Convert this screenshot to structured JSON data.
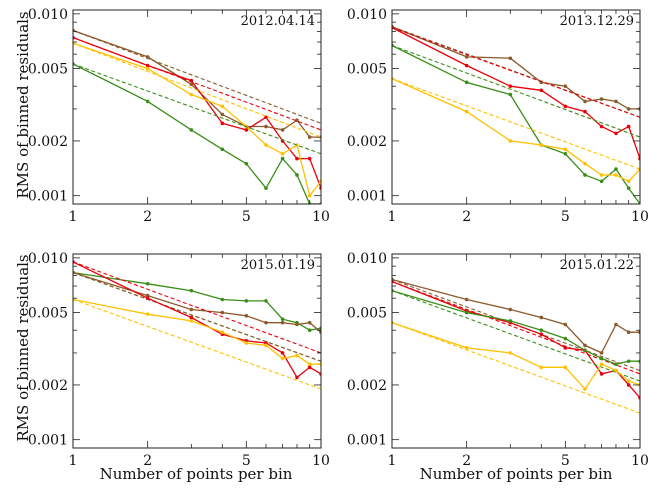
{
  "figure": {
    "ylabel": "RMS of binned residuals",
    "xlabel": "Number of points per bin"
  },
  "chart_data": [
    {
      "type": "line",
      "title": "2012.04.14",
      "xlabel": "Number of points per bin",
      "ylabel": "RMS of binned residuals",
      "xscale": "log",
      "yscale": "log",
      "xlim": [
        1,
        10
      ],
      "ylim": [
        0.0009,
        0.0105
      ],
      "xticks": [
        {
          "v": 1,
          "label": "1"
        },
        {
          "v": 2,
          "label": "2"
        },
        {
          "v": 5,
          "label": "5"
        },
        {
          "v": 10,
          "label": "10"
        }
      ],
      "yticks": [
        {
          "v": 0.001,
          "label": "0.001"
        },
        {
          "v": 0.002,
          "label": "0.002"
        },
        {
          "v": 0.005,
          "label": "0.005"
        },
        {
          "v": 0.01,
          "label": "0.010"
        }
      ],
      "x": [
        1,
        2,
        3,
        4,
        5,
        6,
        7,
        8,
        9,
        10
      ],
      "series": [
        {
          "color": "#8B5A2B",
          "values": [
            0.0081,
            0.0058,
            0.0041,
            0.0028,
            0.0024,
            0.0024,
            0.0023,
            0.0026,
            0.0021,
            0.0021
          ],
          "ref": [
            0.0081,
            0.0025
          ]
        },
        {
          "color": "#E8000B",
          "values": [
            0.0074,
            0.0052,
            0.0043,
            0.0025,
            0.0023,
            0.0027,
            0.002,
            0.0016,
            0.0016,
            0.0011
          ],
          "ref": [
            0.0074,
            0.0023
          ]
        },
        {
          "color": "#FFC000",
          "values": [
            0.0069,
            0.005,
            0.0036,
            0.0031,
            0.0024,
            0.0019,
            0.0017,
            0.0019,
            0.001,
            0.0012
          ],
          "ref": [
            0.0069,
            0.0021
          ]
        },
        {
          "color": "#3A8E17",
          "values": [
            0.0053,
            0.0033,
            0.0023,
            0.0018,
            0.0015,
            0.0011,
            0.0016,
            0.0013,
            0.0009,
            0.0009
          ],
          "ref": [
            0.0053,
            0.0017
          ]
        }
      ]
    },
    {
      "type": "line",
      "title": "2013.12.29",
      "xlabel": "Number of points per bin",
      "ylabel": "RMS of binned residuals",
      "xscale": "log",
      "yscale": "log",
      "xlim": [
        1,
        10
      ],
      "ylim": [
        0.0009,
        0.0105
      ],
      "xticks": [
        {
          "v": 1,
          "label": "1"
        },
        {
          "v": 2,
          "label": "2"
        },
        {
          "v": 5,
          "label": "5"
        },
        {
          "v": 10,
          "label": "10"
        }
      ],
      "yticks": [
        {
          "v": 0.001,
          "label": "0.001"
        },
        {
          "v": 0.002,
          "label": "0.002"
        },
        {
          "v": 0.005,
          "label": "0.005"
        },
        {
          "v": 0.01,
          "label": "0.010"
        }
      ],
      "x": [
        1,
        2,
        3,
        4,
        5,
        6,
        7,
        8,
        9,
        10
      ],
      "series": [
        {
          "color": "#8B5A2B",
          "values": [
            0.0085,
            0.0058,
            0.0057,
            0.0042,
            0.004,
            0.0033,
            0.0034,
            0.0033,
            0.003,
            0.003
          ],
          "ref": [
            0.0085,
            0.0027
          ]
        },
        {
          "color": "#E8000B",
          "values": [
            0.0084,
            0.0052,
            0.004,
            0.0038,
            0.0031,
            0.0029,
            0.0024,
            0.0022,
            0.0024,
            0.0016
          ],
          "ref": [
            0.0084,
            0.0027
          ]
        },
        {
          "color": "#3A8E17",
          "values": [
            0.0067,
            0.0042,
            0.0036,
            0.0019,
            0.0017,
            0.0013,
            0.0012,
            0.0014,
            0.0011,
            0.0009
          ],
          "ref": [
            0.0067,
            0.0021
          ]
        },
        {
          "color": "#FFC000",
          "values": [
            0.0044,
            0.0029,
            0.002,
            0.0019,
            0.0018,
            0.0015,
            0.0013,
            0.0013,
            0.0012,
            0.0014
          ],
          "ref": [
            0.0044,
            0.0014
          ]
        }
      ]
    },
    {
      "type": "line",
      "title": "2015.01.19",
      "xlabel": "Number of points per bin",
      "ylabel": "RMS of binned residuals",
      "xscale": "log",
      "yscale": "log",
      "xlim": [
        1,
        10
      ],
      "ylim": [
        0.0009,
        0.0105
      ],
      "xticks": [
        {
          "v": 1,
          "label": "1"
        },
        {
          "v": 2,
          "label": "2"
        },
        {
          "v": 5,
          "label": "5"
        },
        {
          "v": 10,
          "label": "10"
        }
      ],
      "yticks": [
        {
          "v": 0.001,
          "label": "0.001"
        },
        {
          "v": 0.002,
          "label": "0.002"
        },
        {
          "v": 0.005,
          "label": "0.005"
        },
        {
          "v": 0.01,
          "label": "0.010"
        }
      ],
      "x": [
        1,
        2,
        3,
        4,
        5,
        6,
        7,
        8,
        9,
        10
      ],
      "series": [
        {
          "color": "#3A8E17",
          "values": [
            0.0083,
            0.0072,
            0.0066,
            0.0059,
            0.0058,
            0.0058,
            0.0046,
            0.0044,
            0.004,
            0.0041
          ],
          "ref": [
            0.0083,
            0.0027
          ]
        },
        {
          "color": "#8B5A2B",
          "values": [
            0.0083,
            0.0062,
            0.0052,
            0.005,
            0.0048,
            0.0044,
            0.0044,
            0.0043,
            0.0044,
            0.0039
          ],
          "ref": [
            0.0083,
            0.0027
          ]
        },
        {
          "color": "#E8000B",
          "values": [
            0.0095,
            0.006,
            0.0047,
            0.0038,
            0.0035,
            0.0034,
            0.003,
            0.0022,
            0.0025,
            0.0023
          ],
          "ref": [
            0.0095,
            0.003
          ]
        },
        {
          "color": "#FFC000",
          "values": [
            0.0059,
            0.0049,
            0.0045,
            0.0039,
            0.0034,
            0.0033,
            0.0028,
            0.0029,
            0.0026,
            0.0026
          ],
          "ref": [
            0.0059,
            0.0019
          ]
        }
      ]
    },
    {
      "type": "line",
      "title": "2015.01.22",
      "xlabel": "Number of points per bin",
      "ylabel": "RMS of binned residuals",
      "xscale": "log",
      "yscale": "log",
      "xlim": [
        1,
        10
      ],
      "ylim": [
        0.0009,
        0.0105
      ],
      "xticks": [
        {
          "v": 1,
          "label": "1"
        },
        {
          "v": 2,
          "label": "2"
        },
        {
          "v": 5,
          "label": "5"
        },
        {
          "v": 10,
          "label": "10"
        }
      ],
      "yticks": [
        {
          "v": 0.001,
          "label": "0.001"
        },
        {
          "v": 0.002,
          "label": "0.002"
        },
        {
          "v": 0.005,
          "label": "0.005"
        },
        {
          "v": 0.01,
          "label": "0.010"
        }
      ],
      "x": [
        1,
        2,
        3,
        4,
        5,
        6,
        7,
        8,
        9,
        10
      ],
      "series": [
        {
          "color": "#8B5A2B",
          "values": [
            0.0076,
            0.0059,
            0.0052,
            0.0047,
            0.0043,
            0.0033,
            0.003,
            0.0043,
            0.0039,
            0.0039
          ],
          "ref": [
            0.0076,
            0.0024
          ]
        },
        {
          "color": "#E8000B",
          "values": [
            0.0074,
            0.0051,
            0.0044,
            0.0038,
            0.0032,
            0.0031,
            0.0023,
            0.0024,
            0.002,
            0.0017
          ],
          "ref": [
            0.0074,
            0.0023
          ]
        },
        {
          "color": "#3A8E17",
          "values": [
            0.0066,
            0.005,
            0.0045,
            0.004,
            0.0036,
            0.0031,
            0.0028,
            0.0026,
            0.0027,
            0.0027
          ],
          "ref": [
            0.0066,
            0.0021
          ]
        },
        {
          "color": "#FFC000",
          "values": [
            0.0044,
            0.0032,
            0.003,
            0.0025,
            0.0025,
            0.0019,
            0.0026,
            0.0024,
            0.0021,
            0.002
          ],
          "ref": [
            0.0044,
            0.0014
          ]
        }
      ]
    }
  ]
}
